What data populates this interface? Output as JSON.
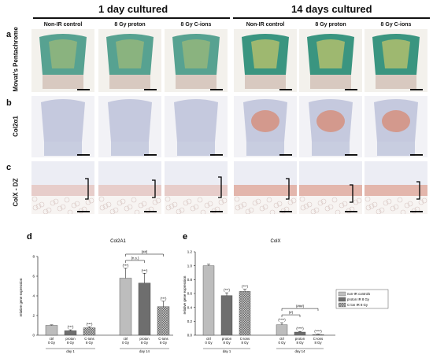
{
  "figure": {
    "group_titles": [
      "1 day cultured",
      "14 days cultured"
    ],
    "column_headers": [
      "Non-IR control",
      "8 Gy proton",
      "8 Gy C-ions",
      "Non-IR control",
      "8 Gy proton",
      "8 Gy C-ions"
    ],
    "rows": [
      {
        "letter": "a",
        "label": "Movat's Pentachrome",
        "stain": "movat"
      },
      {
        "letter": "b",
        "label": "Col2α1",
        "stain": "col2"
      },
      {
        "letter": "c",
        "label": "ColX - DZ",
        "stain": "colx"
      }
    ],
    "colors": {
      "movat_green": "#2f8f7a",
      "movat_yellow": "#c9c86a",
      "col2_blue": "#b9bed8",
      "col2_red": "#d8846b",
      "colx_pink": "#e3b3a8",
      "bar_light": "#bdbdbd",
      "bar_dark": "#6e6e6e",
      "bar_hatch": "#9a9a9a"
    }
  },
  "chart_data": [
    {
      "panel": "d",
      "type": "bar",
      "title": "Col2A1",
      "ylabel": "relative gene expression",
      "ylim": [
        0,
        8
      ],
      "yticks": [
        0,
        2,
        4,
        6,
        8
      ],
      "categories": [
        "ctrl\n0 Gy",
        "proton\n8 Gy",
        "C-ions\n8 Gy",
        "ctrl\n0 Gy",
        "proton\n8 Gy",
        "C-ions\n8 Gy"
      ],
      "groups": [
        "day 1",
        "day 14"
      ],
      "values": [
        1.0,
        0.45,
        0.75,
        5.8,
        5.3,
        2.9
      ],
      "errors": [
        0.05,
        0.1,
        0.1,
        1.0,
        1.0,
        0.55
      ],
      "patterns": [
        "light",
        "dark",
        "hatch",
        "light",
        "dark",
        "hatch"
      ],
      "annotations": [
        "",
        "(***)",
        "(***)",
        "(***)",
        "(***)",
        "(***)"
      ],
      "brackets": [
        {
          "label": "(n.s.)",
          "from": 4,
          "to": 5
        },
        {
          "label": "(##)",
          "from": 4,
          "to": 6
        }
      ]
    },
    {
      "panel": "e",
      "type": "bar",
      "title": "ColX",
      "ylabel": "relative gene expression",
      "ylim": [
        0,
        1.2
      ],
      "yticks": [
        0,
        0.2,
        0.4,
        0.6,
        0.8,
        1.0,
        1.2
      ],
      "ytick_labels": [
        "0.0",
        "0.2",
        "0.4",
        "0.6",
        "0.8",
        "1.0",
        "1.2"
      ],
      "categories": [
        "ctrl\n0 Gy",
        "proton\n8 Gy",
        "C-ions\n8 Gy",
        "ctrl\n0 Gy",
        "proton\n8 Gy",
        "C-ions\n8 Gy"
      ],
      "groups": [
        "day 1",
        "day 14"
      ],
      "values": [
        1.0,
        0.57,
        0.63,
        0.15,
        0.045,
        0.01
      ],
      "errors": [
        0.02,
        0.04,
        0.03,
        0.03,
        0.01,
        0.005
      ],
      "patterns": [
        "light",
        "dark",
        "hatch",
        "light",
        "dark",
        "hatch"
      ],
      "annotations": [
        "",
        "(***)",
        "(***)",
        "(****)",
        "(****)",
        "(****)"
      ],
      "brackets": [
        {
          "label": "(#)",
          "from": 4,
          "to": 5
        },
        {
          "label": "(###)",
          "from": 4,
          "to": 6
        }
      ],
      "legend": [
        "non-IR controls",
        "proton IR 8 Gy",
        "C-ion IR 8 Gy"
      ],
      "legend_position": "right"
    }
  ]
}
